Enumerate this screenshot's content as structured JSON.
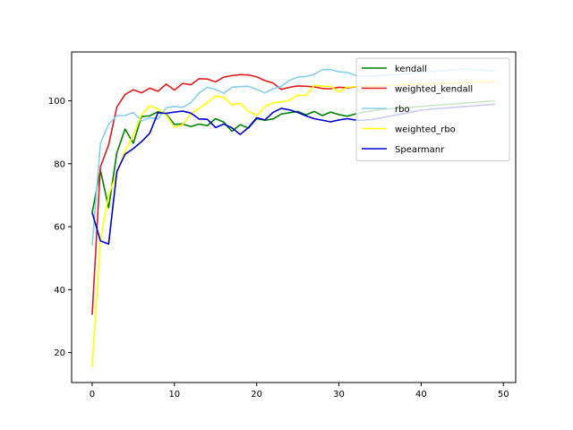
{
  "chart_data": {
    "type": "line",
    "title": "",
    "xlabel": "",
    "ylabel": "",
    "xlim": [
      -2.5,
      51.5
    ],
    "ylim": [
      10.5,
      115.5
    ],
    "xticks": [
      0,
      10,
      20,
      30,
      40,
      50
    ],
    "yticks": [
      20,
      40,
      60,
      80,
      100
    ],
    "grid": false,
    "legend_position": "top-right",
    "x": [
      0,
      1,
      2,
      3,
      4,
      5,
      6,
      7,
      8,
      9,
      10,
      11,
      12,
      13,
      14,
      15,
      16,
      17,
      18,
      19,
      20,
      21,
      22,
      23,
      24,
      25,
      26,
      27,
      28,
      29,
      30,
      31,
      32,
      33,
      34,
      35,
      36,
      37,
      38,
      39,
      40,
      41,
      42,
      43,
      44,
      45,
      46,
      47,
      48,
      49
    ],
    "series": [
      {
        "name": "kendall",
        "color": "#008000",
        "values": [
          64.5,
          78,
          66,
          83.5,
          91,
          86.5,
          95,
          95.2,
          96.5,
          95.8,
          92.5,
          92.6,
          91.8,
          92.6,
          92.1,
          94.3,
          93.2,
          90.3,
          92.4,
          91.3,
          94.3,
          93.8,
          94.2,
          95.8,
          96.2,
          96.6,
          95.5,
          96.6,
          95.3,
          96.4,
          95.6,
          95.1,
          95.8,
          96.4,
          96.8,
          97.2,
          97.4,
          97.6,
          97.8,
          98.0,
          98.2,
          98.4,
          98.6,
          98.8,
          99.0,
          99.2,
          99.4,
          99.6,
          99.8,
          100.0
        ]
      },
      {
        "name": "weighted_kendall",
        "color": "#e31a1c",
        "values": [
          32,
          79,
          86,
          98,
          102,
          103.5,
          102.5,
          104,
          103,
          105.3,
          103.4,
          105.5,
          105.1,
          107,
          106.9,
          106,
          107.5,
          108,
          108.3,
          108.2,
          107.6,
          106.4,
          105.6,
          103.6,
          104.3,
          104.7,
          104.6,
          104.4,
          103.9,
          103.8,
          104.3,
          104.1,
          104.4,
          104.5,
          104.6,
          104.7,
          104.8,
          104.9,
          105.0,
          105.1,
          105.2,
          105.3,
          105.4,
          105.5,
          105.6,
          105.7,
          105.8,
          105.9,
          106.0,
          106.1
        ]
      },
      {
        "name": "rbo",
        "color": "#87ceeb",
        "values": [
          54,
          86.5,
          92.5,
          95.3,
          95.3,
          96.3,
          93.6,
          94.6,
          94.2,
          97.8,
          98.2,
          97.9,
          99.4,
          102.5,
          104.3,
          103.6,
          102.4,
          104.3,
          104.5,
          104.6,
          103.6,
          102.5,
          103.8,
          104.6,
          106.5,
          107.5,
          107.7,
          108.4,
          109.9,
          109.9,
          109.2,
          109.0,
          108.1,
          107.6,
          107.8,
          108.0,
          108.2,
          108.4,
          108.6,
          108.8,
          109.0,
          109.2,
          109.4,
          109.6,
          109.8,
          110.0,
          110.0,
          109.8,
          109.6,
          109.5
        ]
      },
      {
        "name": "weighted_rbo",
        "color": "#ffff00",
        "values": [
          15.5,
          55.5,
          70,
          77,
          84,
          89,
          95.5,
          98.4,
          97.4,
          95.5,
          91.6,
          92.4,
          95.7,
          97.6,
          99.4,
          101.5,
          101.1,
          98.7,
          99.2,
          96.7,
          95.3,
          98.1,
          99.4,
          99.6,
          100.2,
          101.8,
          101.7,
          104.9,
          104.6,
          104.6,
          102.8,
          104.3,
          104.5,
          104.6,
          104.7,
          104.8,
          104.9,
          105.0,
          105.1,
          105.2,
          105.3,
          105.4,
          105.5,
          105.6,
          105.7,
          105.8,
          105.9,
          106.0,
          106.1,
          106.2
        ]
      },
      {
        "name": "Spearmanr",
        "color": "#0000cd",
        "values": [
          64.5,
          55.5,
          54.5,
          77.5,
          83,
          84.8,
          87,
          89.7,
          96.2,
          96,
          96.4,
          96.7,
          96.1,
          94.2,
          94.1,
          91.5,
          92.6,
          91.4,
          89.3,
          91.5,
          94.6,
          93.9,
          96.3,
          97.6,
          97.1,
          96.3,
          95.2,
          94.3,
          93.8,
          93.3,
          93.9,
          94.3,
          93.9,
          93.8,
          94.0,
          94.5,
          95.0,
          95.5,
          96.0,
          96.5,
          97.0,
          97.3,
          97.5,
          97.7,
          97.9,
          98.1,
          98.3,
          98.5,
          98.7,
          98.9
        ]
      }
    ]
  }
}
